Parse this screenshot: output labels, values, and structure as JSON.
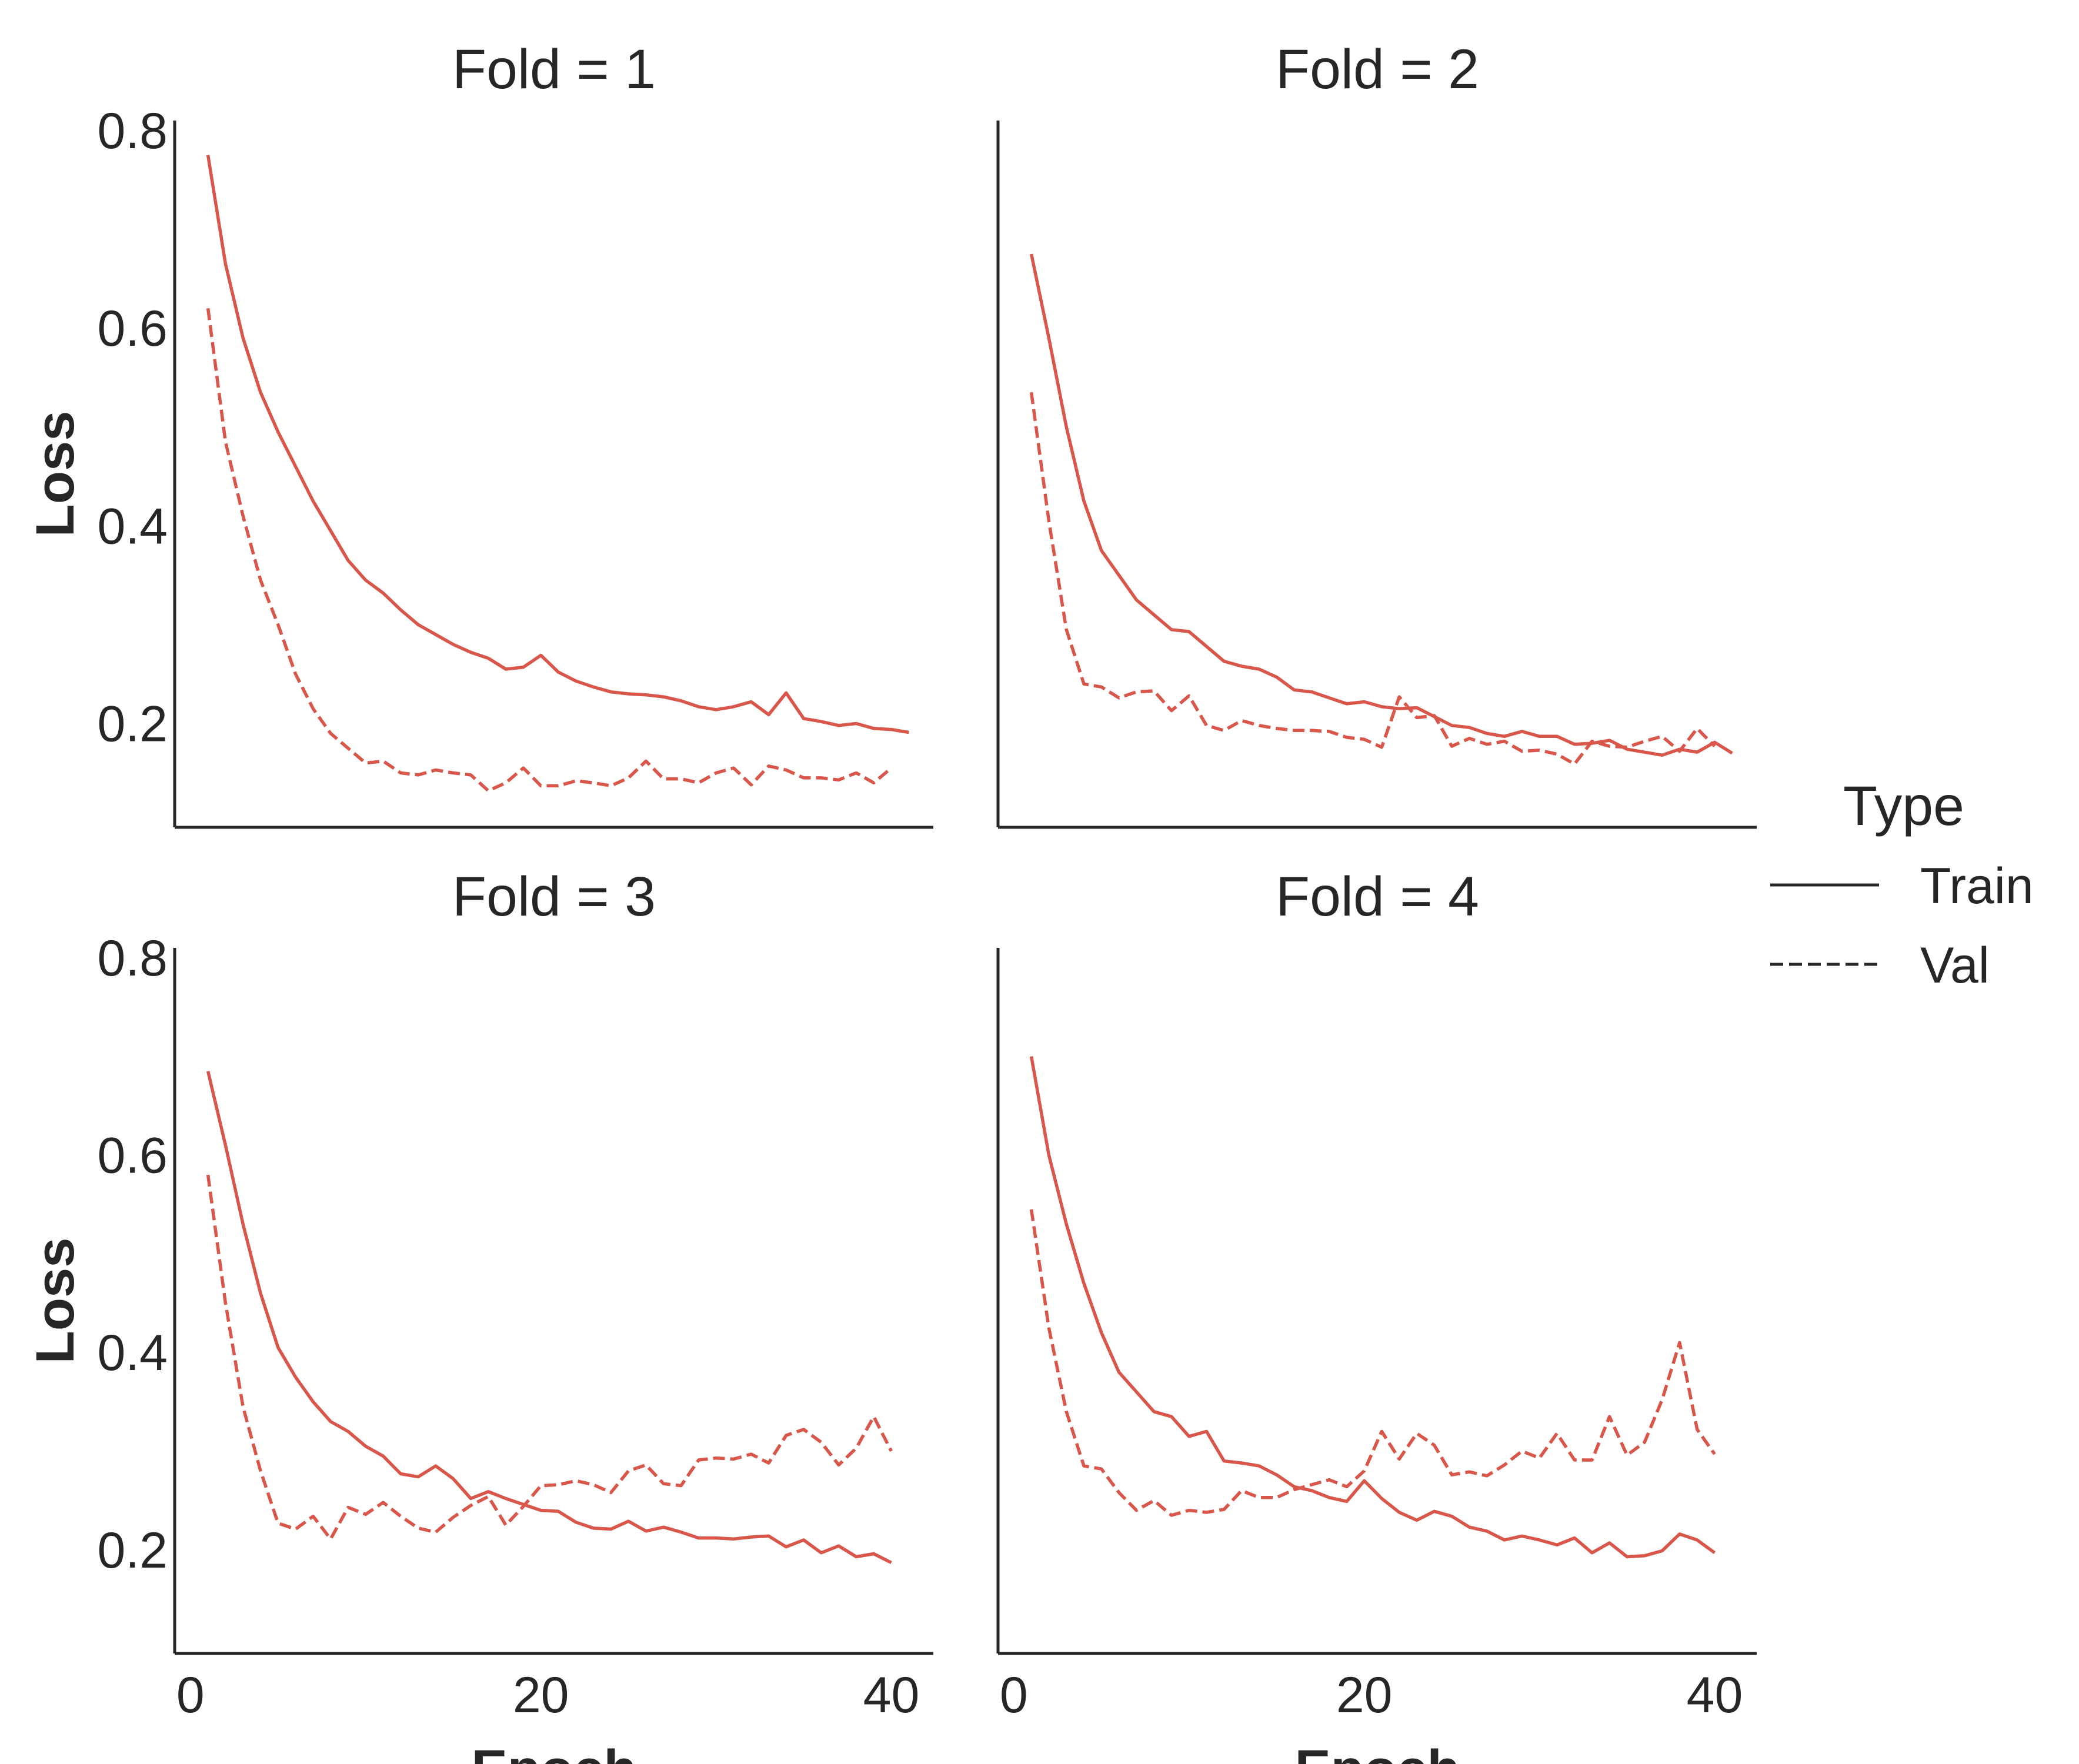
{
  "chart_data": {
    "type": "line",
    "facet_label": "Fold",
    "xlabel": "Epoch",
    "ylabel": "Loss",
    "xlim": [
      -0.9,
      42.4
    ],
    "ylim": [
      0.095,
      0.81
    ],
    "xticks": [
      0,
      20,
      40
    ],
    "yticks": [
      0.2,
      0.4,
      0.6,
      0.8
    ],
    "line_color": "#d9574a",
    "legend": {
      "title": "Type",
      "placement": "right",
      "entries": [
        {
          "label": "Train",
          "style": "solid"
        },
        {
          "label": "Val",
          "style": "dashed"
        }
      ]
    },
    "panels": [
      {
        "title": "Fold = 1",
        "series": [
          {
            "name": "Train",
            "style": "solid",
            "x_start": 1,
            "values": [
              0.775,
              0.665,
              0.59,
              0.535,
              0.495,
              0.46,
              0.425,
              0.395,
              0.365,
              0.345,
              0.332,
              0.315,
              0.3,
              0.29,
              0.28,
              0.272,
              0.266,
              0.255,
              0.257,
              0.269,
              0.252,
              0.243,
              0.237,
              0.232,
              0.23,
              0.229,
              0.227,
              0.223,
              0.217,
              0.214,
              0.217,
              0.222,
              0.209,
              0.231,
              0.205,
              0.202,
              0.198,
              0.2,
              0.195,
              0.194,
              0.191
            ]
          },
          {
            "name": "Val",
            "style": "dashed",
            "x_start": 1,
            "values": [
              0.62,
              0.485,
              0.41,
              0.345,
              0.3,
              0.25,
              0.215,
              0.19,
              0.175,
              0.16,
              0.162,
              0.15,
              0.148,
              0.153,
              0.15,
              0.148,
              0.132,
              0.14,
              0.155,
              0.137,
              0.137,
              0.142,
              0.14,
              0.137,
              0.145,
              0.162,
              0.144,
              0.144,
              0.14,
              0.15,
              0.155,
              0.138,
              0.157,
              0.153,
              0.145,
              0.145,
              0.143,
              0.15,
              0.14,
              0.155
            ]
          }
        ]
      },
      {
        "title": "Fold = 2",
        "series": [
          {
            "name": "Train",
            "style": "solid",
            "x_start": 1,
            "values": [
              0.675,
              0.59,
              0.5,
              0.425,
              0.375,
              0.35,
              0.325,
              0.31,
              0.295,
              0.293,
              0.278,
              0.263,
              0.258,
              0.255,
              0.247,
              0.234,
              0.232,
              0.226,
              0.22,
              0.222,
              0.217,
              0.215,
              0.216,
              0.207,
              0.198,
              0.196,
              0.19,
              0.187,
              0.192,
              0.187,
              0.187,
              0.179,
              0.18,
              0.183,
              0.174,
              0.171,
              0.168,
              0.174,
              0.171,
              0.181,
              0.17
            ]
          },
          {
            "name": "Val",
            "style": "dashed",
            "x_start": 1,
            "values": [
              0.535,
              0.405,
              0.295,
              0.24,
              0.237,
              0.226,
              0.232,
              0.233,
              0.213,
              0.228,
              0.198,
              0.193,
              0.203,
              0.198,
              0.195,
              0.193,
              0.193,
              0.192,
              0.186,
              0.184,
              0.176,
              0.227,
              0.206,
              0.208,
              0.177,
              0.185,
              0.179,
              0.182,
              0.172,
              0.173,
              0.169,
              0.159,
              0.182,
              0.177,
              0.176,
              0.182,
              0.187,
              0.172,
              0.195,
              0.177
            ]
          }
        ]
      },
      {
        "title": "Fold = 3",
        "series": [
          {
            "name": "Train",
            "style": "solid",
            "x_start": 1,
            "values": [
              0.685,
              0.61,
              0.53,
              0.46,
              0.405,
              0.375,
              0.35,
              0.33,
              0.32,
              0.305,
              0.295,
              0.277,
              0.274,
              0.285,
              0.272,
              0.252,
              0.259,
              0.252,
              0.246,
              0.24,
              0.239,
              0.228,
              0.222,
              0.221,
              0.229,
              0.219,
              0.223,
              0.218,
              0.212,
              0.212,
              0.211,
              0.213,
              0.214,
              0.203,
              0.21,
              0.197,
              0.204,
              0.193,
              0.196,
              0.187
            ]
          },
          {
            "name": "Val",
            "style": "dashed",
            "x_start": 1,
            "values": [
              0.58,
              0.45,
              0.345,
              0.28,
              0.227,
              0.221,
              0.234,
              0.211,
              0.243,
              0.236,
              0.248,
              0.234,
              0.222,
              0.218,
              0.233,
              0.245,
              0.254,
              0.225,
              0.244,
              0.265,
              0.266,
              0.27,
              0.266,
              0.258,
              0.28,
              0.286,
              0.267,
              0.265,
              0.291,
              0.293,
              0.292,
              0.297,
              0.288,
              0.316,
              0.322,
              0.309,
              0.286,
              0.303,
              0.335,
              0.3
            ]
          }
        ]
      },
      {
        "title": "Fold = 4",
        "series": [
          {
            "name": "Train",
            "style": "solid",
            "x_start": 1,
            "values": [
              0.7,
              0.6,
              0.53,
              0.47,
              0.42,
              0.38,
              0.36,
              0.34,
              0.335,
              0.315,
              0.32,
              0.29,
              0.288,
              0.285,
              0.276,
              0.264,
              0.26,
              0.253,
              0.249,
              0.27,
              0.252,
              0.238,
              0.23,
              0.239,
              0.234,
              0.223,
              0.219,
              0.21,
              0.214,
              0.21,
              0.205,
              0.212,
              0.197,
              0.207,
              0.193,
              0.194,
              0.199,
              0.216,
              0.21,
              0.197
            ]
          },
          {
            "name": "Val",
            "style": "dashed",
            "x_start": 1,
            "values": [
              0.545,
              0.425,
              0.34,
              0.285,
              0.282,
              0.258,
              0.24,
              0.25,
              0.235,
              0.24,
              0.238,
              0.241,
              0.26,
              0.253,
              0.253,
              0.261,
              0.266,
              0.271,
              0.264,
              0.28,
              0.32,
              0.292,
              0.318,
              0.306,
              0.276,
              0.279,
              0.275,
              0.286,
              0.3,
              0.293,
              0.318,
              0.291,
              0.291,
              0.335,
              0.296,
              0.309,
              0.352,
              0.41,
              0.322,
              0.297
            ]
          }
        ]
      }
    ]
  }
}
